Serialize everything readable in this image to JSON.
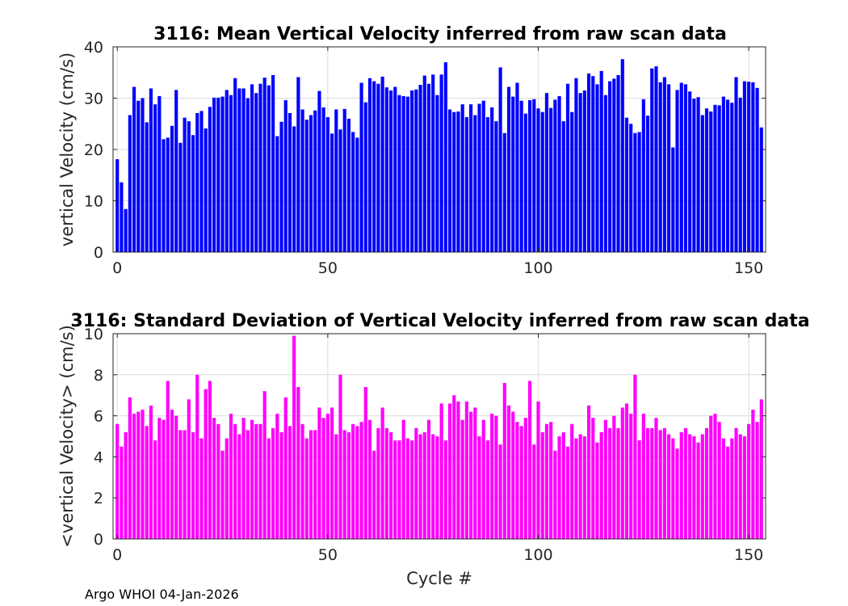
{
  "footer_text": "Argo WHOI 04-Jan-2026",
  "chart_data": [
    {
      "type": "bar",
      "title": "3116: Mean Vertical Velocity inferred from raw scan data",
      "xlabel": "",
      "ylabel": "vertical Velocity (cm/s)",
      "xlim": [
        -1,
        154
      ],
      "ylim": [
        0,
        40
      ],
      "xticks": [
        0,
        50,
        100,
        150
      ],
      "yticks": [
        0,
        10,
        20,
        30,
        40
      ],
      "grid": true,
      "color": "#0000ff",
      "x_start": 0,
      "values": [
        18.1,
        13.6,
        8.4,
        26.7,
        32.2,
        29.5,
        30.0,
        25.3,
        31.9,
        28.8,
        30.4,
        22.0,
        22.3,
        24.6,
        31.6,
        21.3,
        26.2,
        25.5,
        22.8,
        27.1,
        27.5,
        24.1,
        28.3,
        30.1,
        30.1,
        30.3,
        31.6,
        30.6,
        33.9,
        31.9,
        31.9,
        30.0,
        32.7,
        31.0,
        32.8,
        34.0,
        32.5,
        34.5,
        22.6,
        25.4,
        29.6,
        27.1,
        24.5,
        34.1,
        27.8,
        25.8,
        26.7,
        27.6,
        31.4,
        28.2,
        26.3,
        23.1,
        27.8,
        23.9,
        27.9,
        26.0,
        23.4,
        22.3,
        33.0,
        29.2,
        33.9,
        33.3,
        32.8,
        34.2,
        32.1,
        31.5,
        32.2,
        30.6,
        30.4,
        30.3,
        31.5,
        31.7,
        32.6,
        34.4,
        32.8,
        34.6,
        30.6,
        34.6,
        37.0,
        27.8,
        27.3,
        27.4,
        28.8,
        26.3,
        28.8,
        26.7,
        28.9,
        29.5,
        26.3,
        28.2,
        25.5,
        36.0,
        23.2,
        32.2,
        30.3,
        33.0,
        29.5,
        27.0,
        29.6,
        29.8,
        28.0,
        27.3,
        31.0,
        28.1,
        29.7,
        30.4,
        25.5,
        32.8,
        27.3,
        33.9,
        31.0,
        31.5,
        34.8,
        34.3,
        32.7,
        35.3,
        30.6,
        33.3,
        33.8,
        34.5,
        37.6,
        26.2,
        25.0,
        23.2,
        23.4,
        29.8,
        26.6,
        35.8,
        36.2,
        33.1,
        34.1,
        32.7,
        20.4,
        31.6,
        33.0,
        32.7,
        31.3,
        29.9,
        30.2,
        26.7,
        28.0,
        27.4,
        28.7,
        28.6,
        30.3,
        29.7,
        29.1,
        34.1,
        30.1,
        33.3,
        33.2,
        33.1,
        32.0,
        24.3
      ]
    },
    {
      "type": "bar",
      "title": "3116: Standard Deviation of Vertical Velocity inferred from raw scan data",
      "xlabel": "Cycle #",
      "ylabel": "<vertical Velocity> (cm/s)",
      "xlim": [
        -1,
        154
      ],
      "ylim": [
        0,
        10
      ],
      "xticks": [
        0,
        50,
        100,
        150
      ],
      "yticks": [
        0,
        2,
        4,
        6,
        8,
        10
      ],
      "grid": true,
      "color": "#ff00ff",
      "x_start": 0,
      "values": [
        5.6,
        4.5,
        5.2,
        6.9,
        6.1,
        6.2,
        6.3,
        5.5,
        6.5,
        4.8,
        5.9,
        5.8,
        7.7,
        6.3,
        6.0,
        5.3,
        5.3,
        6.8,
        5.2,
        8.0,
        4.9,
        7.3,
        7.7,
        5.9,
        5.6,
        4.3,
        4.9,
        6.1,
        5.6,
        5.1,
        5.9,
        5.3,
        5.8,
        5.6,
        5.6,
        7.2,
        4.9,
        5.4,
        6.1,
        5.2,
        6.9,
        5.5,
        9.9,
        7.4,
        5.6,
        4.9,
        5.3,
        5.3,
        6.4,
        5.9,
        6.1,
        6.4,
        5.1,
        8.0,
        5.3,
        5.2,
        5.6,
        5.5,
        5.7,
        7.4,
        5.8,
        4.3,
        5.4,
        6.4,
        5.4,
        5.2,
        4.8,
        4.8,
        5.8,
        4.9,
        4.8,
        5.4,
        5.1,
        5.2,
        5.8,
        5.1,
        5.0,
        6.6,
        4.8,
        6.6,
        7.0,
        6.7,
        5.8,
        6.7,
        6.2,
        6.4,
        5.0,
        5.8,
        4.8,
        6.1,
        6.0,
        4.6,
        7.6,
        6.5,
        6.2,
        5.7,
        5.5,
        5.9,
        7.7,
        4.6,
        6.7,
        5.2,
        5.6,
        5.7,
        4.3,
        5.0,
        5.2,
        4.5,
        5.6,
        4.9,
        5.1,
        5.0,
        6.5,
        5.9,
        4.7,
        5.2,
        5.8,
        5.4,
        6.0,
        5.4,
        6.4,
        6.6,
        6.1,
        8.0,
        4.8,
        6.1,
        5.4,
        5.4,
        5.9,
        5.3,
        5.4,
        5.1,
        4.9,
        4.4,
        5.2,
        5.4,
        5.1,
        5.0,
        4.7,
        5.1,
        5.4,
        6.0,
        6.1,
        5.7,
        4.9,
        4.5,
        4.9,
        5.4,
        5.1,
        5.0,
        5.6,
        6.3,
        5.7,
        6.8
      ]
    }
  ]
}
